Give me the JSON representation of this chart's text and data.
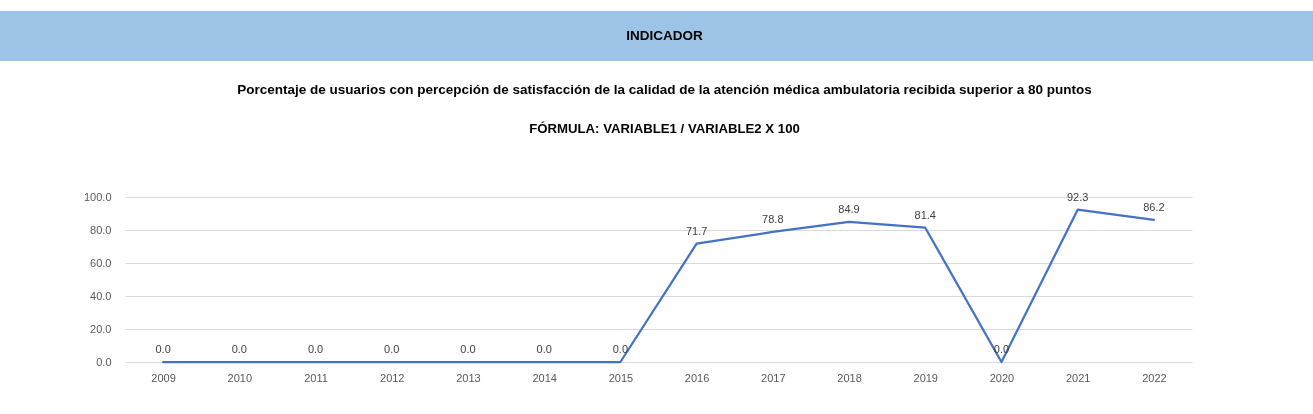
{
  "chart_data": {
    "type": "line",
    "title": "INDICADOR",
    "subtitle": "Porcentaje de usuarios con percepción de satisfacción de la calidad de la atención médica ambulatoria recibida superior a 80 puntos",
    "annotations": [
      "FÓRMULA: VARIABLE1 / VARIABLE2 X 100"
    ],
    "categories": [
      "2009",
      "2010",
      "2011",
      "2012",
      "2013",
      "2014",
      "2015",
      "2016",
      "2017",
      "2018",
      "2019",
      "2020",
      "2021",
      "2022"
    ],
    "values": [
      0,
      0,
      0,
      0,
      0,
      0,
      0,
      71.7,
      78.8,
      84.9,
      81.4,
      0,
      92.3,
      86.2
    ],
    "value_labels": [
      "0.0",
      "0.0",
      "0.0",
      "0.0",
      "0.0",
      "0.0",
      "0.0",
      "71.7",
      "78.8",
      "84.9",
      "81.4",
      "0.0",
      "92.3",
      "86.2"
    ],
    "color": "#4472c4",
    "line_style": "solid",
    "ylim": [
      0,
      100
    ],
    "yticks": [
      {
        "value": 0,
        "label": "0.0"
      },
      {
        "value": 20,
        "label": "20.0"
      },
      {
        "value": 40,
        "label": "40.0"
      },
      {
        "value": 60,
        "label": "60.0"
      },
      {
        "value": 80,
        "label": "80.0"
      },
      {
        "value": 100,
        "label": "100.0"
      }
    ],
    "grid": "y"
  }
}
